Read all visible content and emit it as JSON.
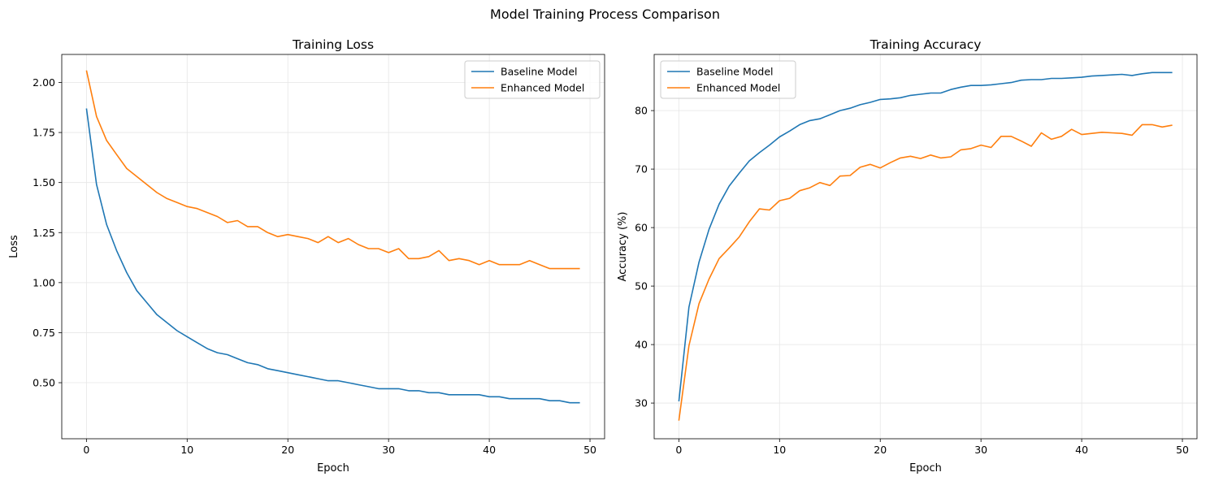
{
  "suptitle": "Model Training Process Comparison",
  "chart_data": [
    {
      "type": "line",
      "title": "Training Loss",
      "xlabel": "Epoch",
      "ylabel": "Loss",
      "xlim": [
        -2.45,
        51.45
      ],
      "ylim": [
        0.22,
        2.14
      ],
      "xticks": [
        0,
        10,
        20,
        30,
        40,
        50
      ],
      "yticks": [
        0.5,
        0.75,
        1.0,
        1.25,
        1.5,
        1.75,
        2.0
      ],
      "ytick_labels": [
        "0.50",
        "0.75",
        "1.00",
        "1.25",
        "1.50",
        "1.75",
        "2.00"
      ],
      "grid": true,
      "legend": "upper right",
      "x": [
        0,
        1,
        2,
        3,
        4,
        5,
        6,
        7,
        8,
        9,
        10,
        11,
        12,
        13,
        14,
        15,
        16,
        17,
        18,
        19,
        20,
        21,
        22,
        23,
        24,
        25,
        26,
        27,
        28,
        29,
        30,
        31,
        32,
        33,
        34,
        35,
        36,
        37,
        38,
        39,
        40,
        41,
        42,
        43,
        44,
        45,
        46,
        47,
        48,
        49
      ],
      "series": [
        {
          "name": "Baseline Model",
          "color": "#1f77b4",
          "values": [
            1.87,
            1.49,
            1.29,
            1.16,
            1.05,
            0.96,
            0.9,
            0.84,
            0.8,
            0.76,
            0.73,
            0.7,
            0.67,
            0.65,
            0.64,
            0.62,
            0.6,
            0.59,
            0.57,
            0.56,
            0.55,
            0.54,
            0.53,
            0.52,
            0.51,
            0.51,
            0.5,
            0.49,
            0.48,
            0.47,
            0.47,
            0.47,
            0.46,
            0.46,
            0.45,
            0.45,
            0.44,
            0.44,
            0.44,
            0.44,
            0.43,
            0.43,
            0.42,
            0.42,
            0.42,
            0.42,
            0.41,
            0.41,
            0.4,
            0.4
          ]
        },
        {
          "name": "Enhanced Model",
          "color": "#ff7f0e",
          "values": [
            2.06,
            1.83,
            1.71,
            1.64,
            1.57,
            1.53,
            1.49,
            1.45,
            1.42,
            1.4,
            1.38,
            1.37,
            1.35,
            1.33,
            1.3,
            1.31,
            1.28,
            1.28,
            1.25,
            1.23,
            1.24,
            1.23,
            1.22,
            1.2,
            1.23,
            1.2,
            1.22,
            1.19,
            1.17,
            1.17,
            1.15,
            1.17,
            1.12,
            1.12,
            1.13,
            1.16,
            1.11,
            1.12,
            1.11,
            1.09,
            1.11,
            1.09,
            1.09,
            1.09,
            1.11,
            1.09,
            1.07,
            1.07,
            1.07,
            1.07
          ]
        }
      ]
    },
    {
      "type": "line",
      "title": "Training Accuracy",
      "xlabel": "Epoch",
      "ylabel": "Accuracy (%)",
      "xlim": [
        -2.45,
        51.45
      ],
      "ylim": [
        23.9,
        89.6
      ],
      "xticks": [
        0,
        10,
        20,
        30,
        40,
        50
      ],
      "yticks": [
        30,
        40,
        50,
        60,
        70,
        80
      ],
      "ytick_labels": [
        "30",
        "40",
        "50",
        "60",
        "70",
        "80"
      ],
      "grid": true,
      "legend": "upper left",
      "x": [
        0,
        1,
        2,
        3,
        4,
        5,
        6,
        7,
        8,
        9,
        10,
        11,
        12,
        13,
        14,
        15,
        16,
        17,
        18,
        19,
        20,
        21,
        22,
        23,
        24,
        25,
        26,
        27,
        28,
        29,
        30,
        31,
        32,
        33,
        34,
        35,
        36,
        37,
        38,
        39,
        40,
        41,
        42,
        43,
        44,
        45,
        46,
        47,
        48,
        49
      ],
      "series": [
        {
          "name": "Baseline Model",
          "color": "#1f77b4",
          "values": [
            30.3,
            46.4,
            54.1,
            59.7,
            64.0,
            67.1,
            69.3,
            71.4,
            72.8,
            74.1,
            75.5,
            76.5,
            77.6,
            78.3,
            78.6,
            79.3,
            80.0,
            80.4,
            81.0,
            81.4,
            81.9,
            82.0,
            82.2,
            82.6,
            82.8,
            83.0,
            83.0,
            83.6,
            84.0,
            84.3,
            84.3,
            84.4,
            84.6,
            84.8,
            85.2,
            85.3,
            85.3,
            85.5,
            85.5,
            85.6,
            85.7,
            85.9,
            86.0,
            86.1,
            86.2,
            86.0,
            86.3,
            86.5,
            86.5,
            86.5
          ]
        },
        {
          "name": "Enhanced Model",
          "color": "#ff7f0e",
          "values": [
            27.0,
            39.8,
            47.0,
            51.2,
            54.7,
            56.5,
            58.4,
            61.0,
            63.2,
            63.0,
            64.6,
            65.0,
            66.3,
            66.8,
            67.7,
            67.2,
            68.8,
            68.9,
            70.3,
            70.8,
            70.2,
            71.1,
            71.9,
            72.2,
            71.8,
            72.4,
            71.9,
            72.1,
            73.3,
            73.5,
            74.1,
            73.7,
            75.6,
            75.6,
            74.8,
            73.9,
            76.2,
            75.1,
            75.6,
            76.8,
            75.9,
            76.1,
            76.3,
            76.2,
            76.1,
            75.8,
            77.6,
            77.6,
            77.2,
            77.5
          ]
        }
      ]
    }
  ]
}
